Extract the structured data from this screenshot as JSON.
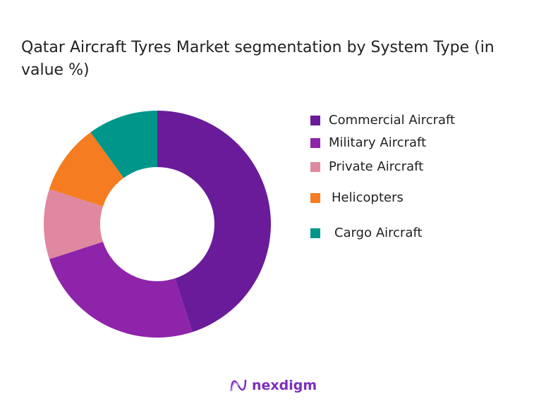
{
  "chart_data": {
    "type": "pie",
    "variant": "donut",
    "title": "Qatar Aircraft Tyres Market segmentation by System Type (in value %)",
    "categories": [
      "Commercial Aircraft",
      "Military Aircraft",
      "Private Aircraft",
      "Helicopters",
      "Cargo Aircraft"
    ],
    "values": [
      45,
      25,
      10,
      10,
      10
    ],
    "colors": [
      "#6a1b9a",
      "#8e24aa",
      "#e088a0",
      "#f57c20",
      "#00968a"
    ],
    "legend_position": "right"
  },
  "brand": {
    "name": "nexdigm"
  }
}
